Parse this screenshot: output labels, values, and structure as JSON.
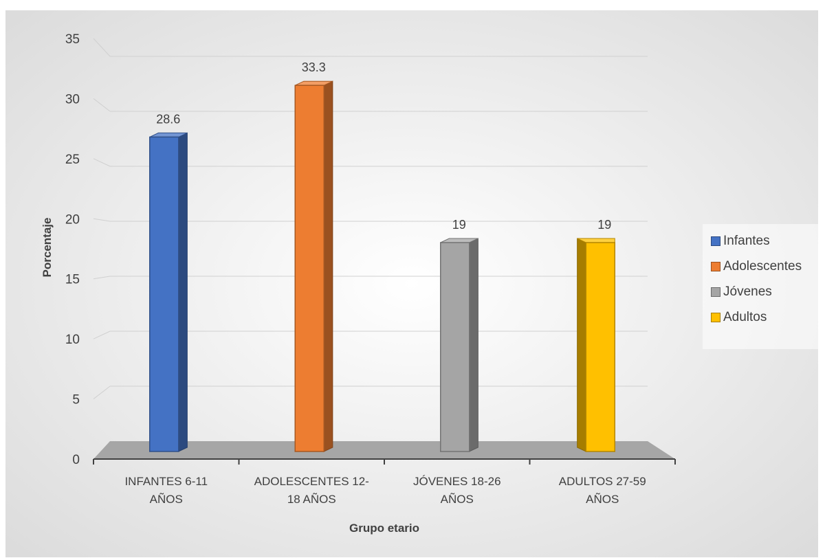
{
  "chart_data": {
    "type": "bar",
    "title": "",
    "xlabel": "Grupo etario",
    "ylabel": "Porcentaje",
    "categories": [
      "INFANTES 6-11 AÑOS",
      "ADOLESCENTES 12-18 AÑOS",
      "JÓVENES 18-26 AÑOS",
      "ADULTOS 27-59 AÑOS"
    ],
    "category_lines": [
      [
        "INFANTES 6-11",
        "AÑOS"
      ],
      [
        "ADOLESCENTES 12-",
        "18 AÑOS"
      ],
      [
        "JÓVENES 18-26",
        "AÑOS"
      ],
      [
        "ADULTOS 27-59",
        "AÑOS"
      ]
    ],
    "series": [
      {
        "name": "Infantes",
        "category": 0,
        "value": 28.6,
        "label": "28.6",
        "color": "#4472C4"
      },
      {
        "name": "Adolescentes",
        "category": 1,
        "value": 33.3,
        "label": "33.3",
        "color": "#ED7D31"
      },
      {
        "name": "Jóvenes",
        "category": 2,
        "value": 19,
        "label": "19",
        "color": "#A5A5A5"
      },
      {
        "name": "Adultos",
        "category": 3,
        "value": 19,
        "label": "19",
        "color": "#FFC000"
      }
    ],
    "yticks": [
      "0",
      "5",
      "10",
      "15",
      "20",
      "25",
      "30",
      "35"
    ],
    "ylim": [
      0,
      35
    ],
    "grid": true,
    "legend": "right",
    "bar_style": "3d"
  }
}
